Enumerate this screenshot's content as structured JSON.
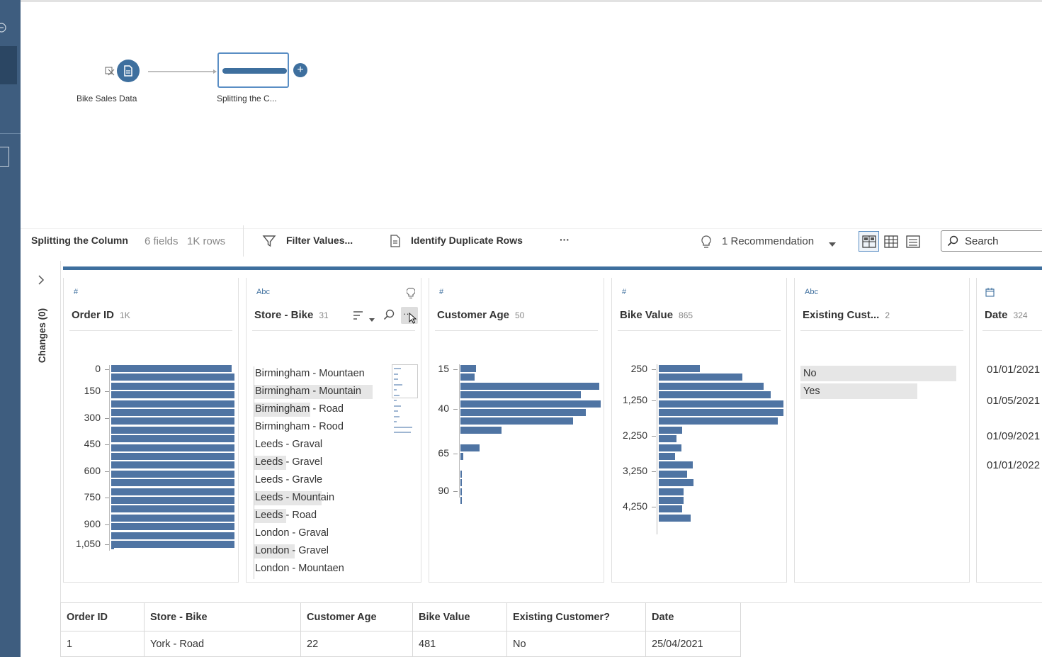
{
  "flow": {
    "input_node_label": "Bike Sales Data",
    "clean_node_label": "Splitting the C..."
  },
  "toolbar": {
    "step_name": "Splitting the Column",
    "fields": "6 fields",
    "rows": "1K rows",
    "filter_label": "Filter Values...",
    "duplicates_label": "Identify Duplicate Rows",
    "more_label": "···",
    "recommendation_label": "1 Recommendation",
    "search_placeholder": "Search"
  },
  "changes_panel": {
    "label": "Changes (0)"
  },
  "profile": {
    "cards": [
      {
        "type_icon": "#",
        "title": "Order ID",
        "count": "1K",
        "axis": [
          "0",
          "150",
          "300",
          "450",
          "600",
          "750",
          "900",
          "1,050"
        ]
      },
      {
        "type_icon": "Abc",
        "title": "Store - Bike",
        "count": "31",
        "values": [
          "Birmingham - Mountaen",
          "Birmingham - Mountain",
          "Birmingham - Road",
          "Birmingham - Rood",
          "Leeds - Graval",
          "Leeds - Gravel",
          "Leeds - Gravle",
          "Leeds - Mountain",
          "Leeds - Road",
          "London - Graval",
          "London - Gravel",
          "London - Mountaen"
        ]
      },
      {
        "type_icon": "#",
        "title": "Customer Age",
        "count": "50",
        "axis": [
          "15",
          "40",
          "65",
          "90"
        ]
      },
      {
        "type_icon": "#",
        "title": "Bike Value",
        "count": "865",
        "axis": [
          "250",
          "1,250",
          "2,250",
          "3,250",
          "4,250"
        ]
      },
      {
        "type_icon": "Abc",
        "title": "Existing Cust...",
        "count": "2",
        "values": [
          "No",
          "Yes"
        ],
        "fractions": [
          1.0,
          0.75
        ]
      },
      {
        "type_icon": "",
        "title": "Date",
        "count": "324",
        "values": [
          "01/01/2021",
          "01/05/2021",
          "01/09/2021",
          "01/01/2022"
        ]
      }
    ]
  },
  "grid": {
    "headers": [
      "Order ID",
      "Store - Bike",
      "Customer Age",
      "Bike Value",
      "Existing Customer?",
      "Date"
    ],
    "rows": [
      [
        "1",
        "York - Road",
        "22",
        "481",
        "No",
        "25/04/2021"
      ]
    ]
  }
}
